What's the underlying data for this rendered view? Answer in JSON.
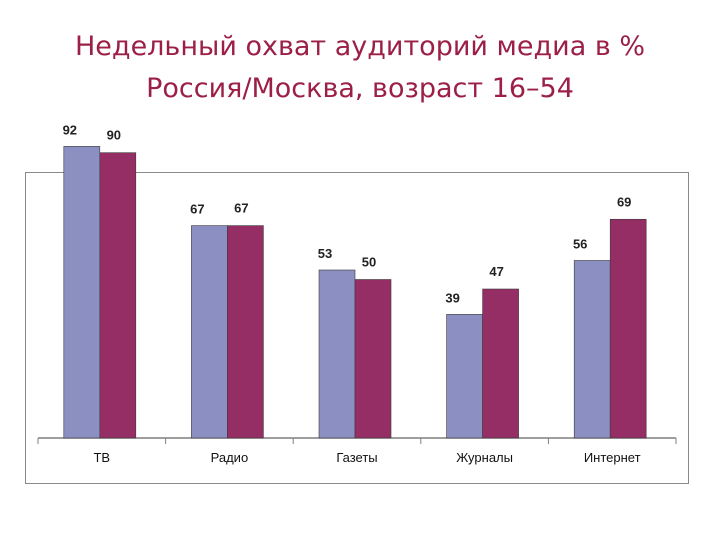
{
  "slide": {
    "title_line1": "Недельный охват аудиторий медиа в %",
    "title_line2": "Россия/Москва, возраст 16–54"
  },
  "colors": {
    "title": "#9b1f46",
    "series_a": "#8c8fc2",
    "series_b": "#962e66",
    "frame": "#8a8a8a",
    "axis": "#7f7f7f"
  },
  "chart_data": {
    "type": "bar",
    "categories": [
      "ТВ",
      "Радио",
      "Газеты",
      "Журналы",
      "Интернет"
    ],
    "series": [
      {
        "values": [
          92,
          67,
          53,
          39,
          56
        ]
      },
      {
        "values": [
          90,
          67,
          50,
          47,
          69
        ]
      }
    ],
    "ylim": [
      0,
      100
    ],
    "grid": false,
    "legend": "none",
    "data_labels": true
  }
}
